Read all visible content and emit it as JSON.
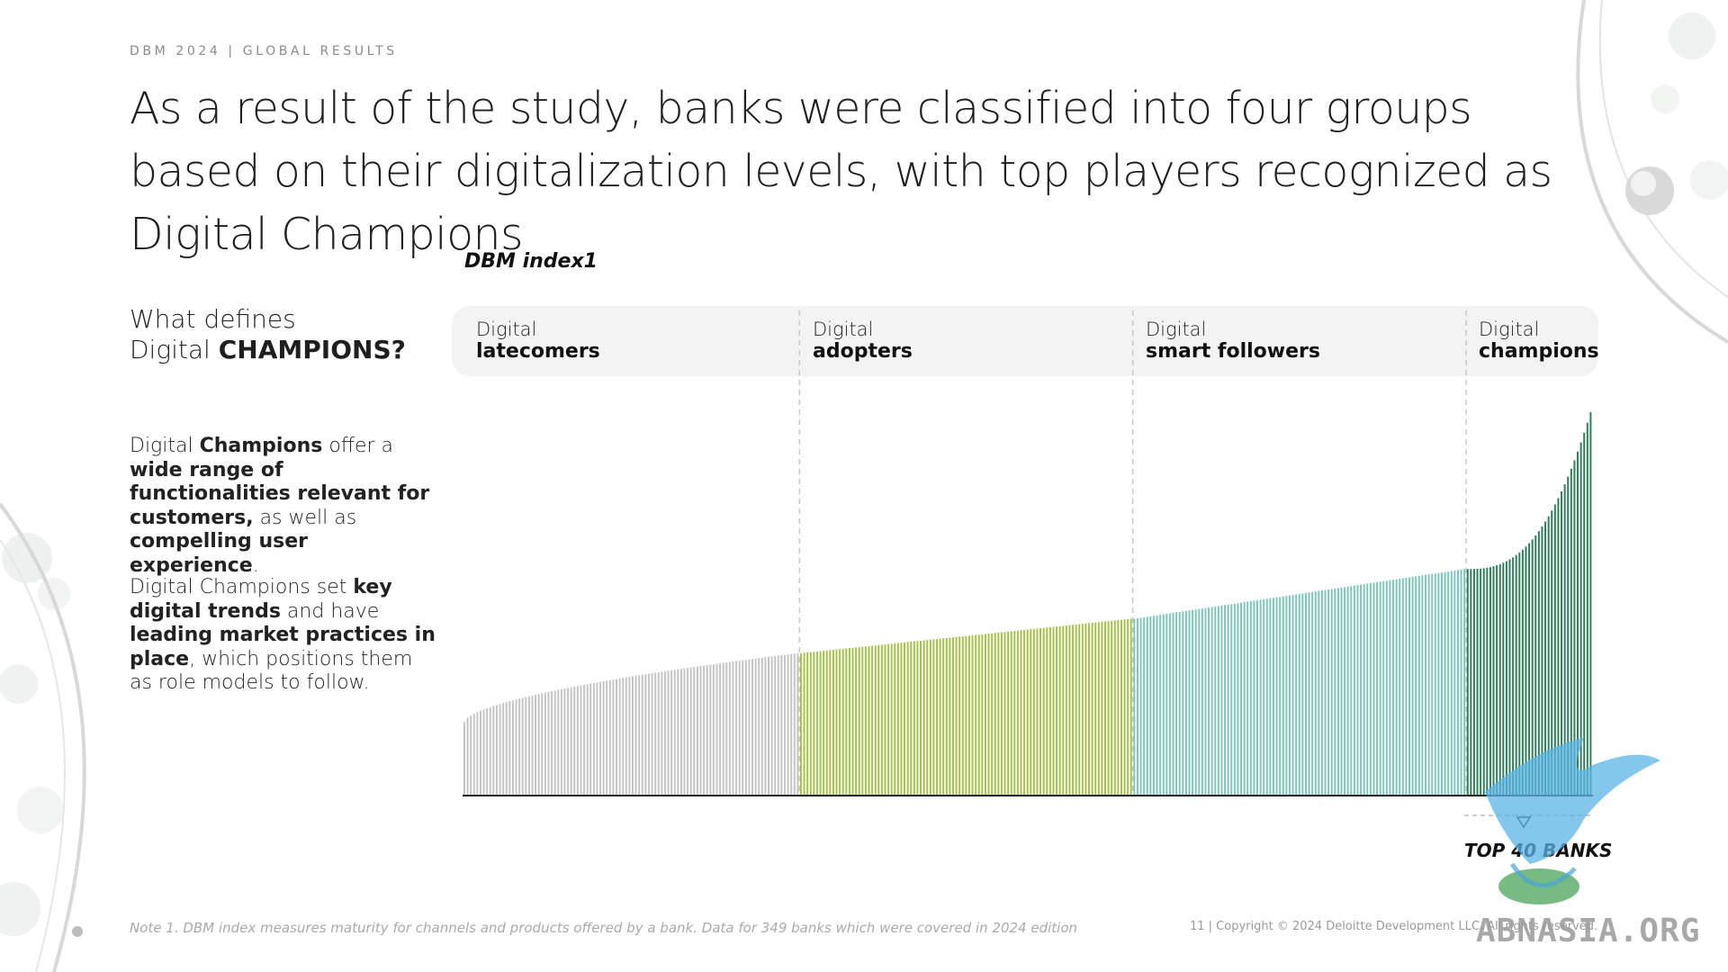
{
  "header": {
    "eyebrow": "DBM 2024 | GLOBAL RESULTS",
    "title": "As a result of the study, banks were classified into four groups based on their digitalization levels, with top players recognized as Digital Champions"
  },
  "sidebar": {
    "heading_line1": "What defines",
    "heading_line2_light": "Digital ",
    "heading_line2_bold": "CHAMPIONS?",
    "para1": [
      {
        "t": "Digital ",
        "b": false
      },
      {
        "t": "Champions",
        "b": true
      },
      {
        "t": " offer a ",
        "b": false
      },
      {
        "t": "wide range of functionalities relevant for customers,",
        "b": true
      },
      {
        "t": " as well as ",
        "b": false
      },
      {
        "t": "compelling user experience",
        "b": true
      },
      {
        "t": ".",
        "b": false
      }
    ],
    "para2": [
      {
        "t": "Digital Champions set ",
        "b": false
      },
      {
        "t": "key digital trends",
        "b": true
      },
      {
        "t": " and have ",
        "b": false
      },
      {
        "t": "leading market practices in place",
        "b": true
      },
      {
        "t": ", which positions them as role models to follow.",
        "b": false
      }
    ]
  },
  "chart_data": {
    "type": "bar",
    "title": "DBM index1",
    "bank_count": 349,
    "sorted": "ascending",
    "segments": [
      {
        "line1": "Digital",
        "line2": "latecomers",
        "count": 104,
        "color": "#c4c4c4",
        "start": 0.19,
        "end": 0.37
      },
      {
        "line1": "Digital",
        "line2": "adopters",
        "count": 103,
        "color": "#a6c24a",
        "start": 0.37,
        "end": 0.46
      },
      {
        "line1": "Digital",
        "line2": "smart followers",
        "count": 103,
        "color": "#7ec6ba",
        "start": 0.46,
        "end": 0.59
      },
      {
        "line1": "Digital",
        "line2": "champions",
        "count": 39,
        "color": "#2f7d5a",
        "start": 0.59,
        "end": 1.0
      }
    ],
    "highlight": "TOP 40 BANKS",
    "axes_visible": false,
    "grid": false
  },
  "footer": {
    "note": "Note 1. DBM index measures maturity for channels and products offered by a bank. Data for 349 banks which were covered in 2024 edition",
    "copyright": "11 | Copyright © 2024 Deloitte Development LLC. All rights reserved.",
    "watermark": "ABNASIA.ORG"
  }
}
